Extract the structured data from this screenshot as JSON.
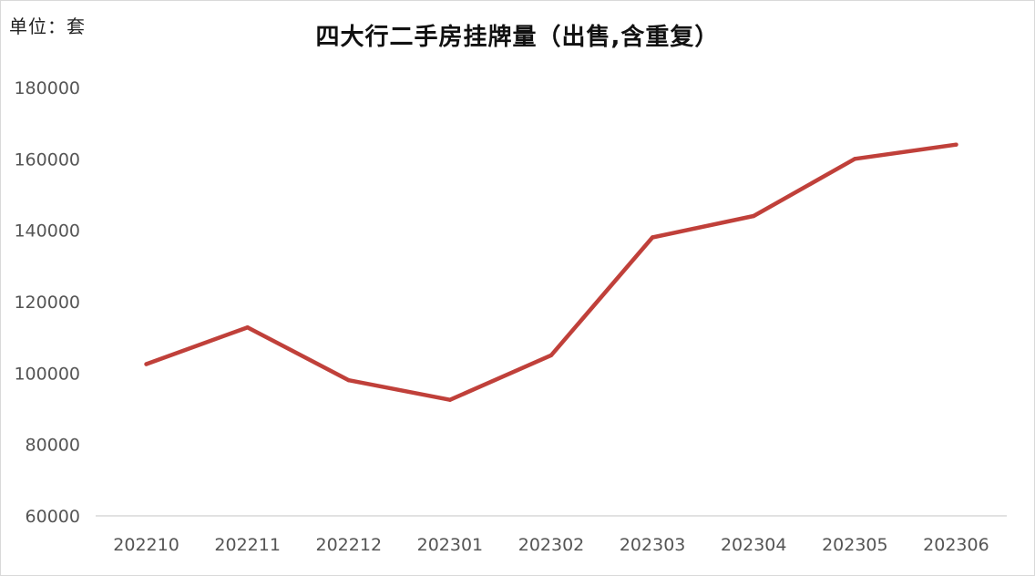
{
  "unit_label": "单位：套",
  "chart_data": {
    "type": "line",
    "title": "四大行二手房挂牌量（出售,含重复）",
    "xlabel": "",
    "ylabel": "",
    "categories": [
      "202210",
      "202211",
      "202212",
      "202301",
      "202302",
      "202303",
      "202304",
      "202305",
      "202306"
    ],
    "series": [
      {
        "values": [
          102500,
          112800,
          98000,
          92500,
          105000,
          138000,
          144000,
          160000,
          164000
        ],
        "color": "#c0403a"
      }
    ],
    "ylim": [
      60000,
      180000
    ],
    "yticks": [
      60000,
      80000,
      100000,
      120000,
      140000,
      160000,
      180000
    ],
    "ytick_labels": [
      "60000",
      "80000",
      "100000",
      "120000",
      "140000",
      "160000",
      "180000"
    ],
    "grid": false,
    "legend": false,
    "axis_color": "#d9d9d9"
  }
}
